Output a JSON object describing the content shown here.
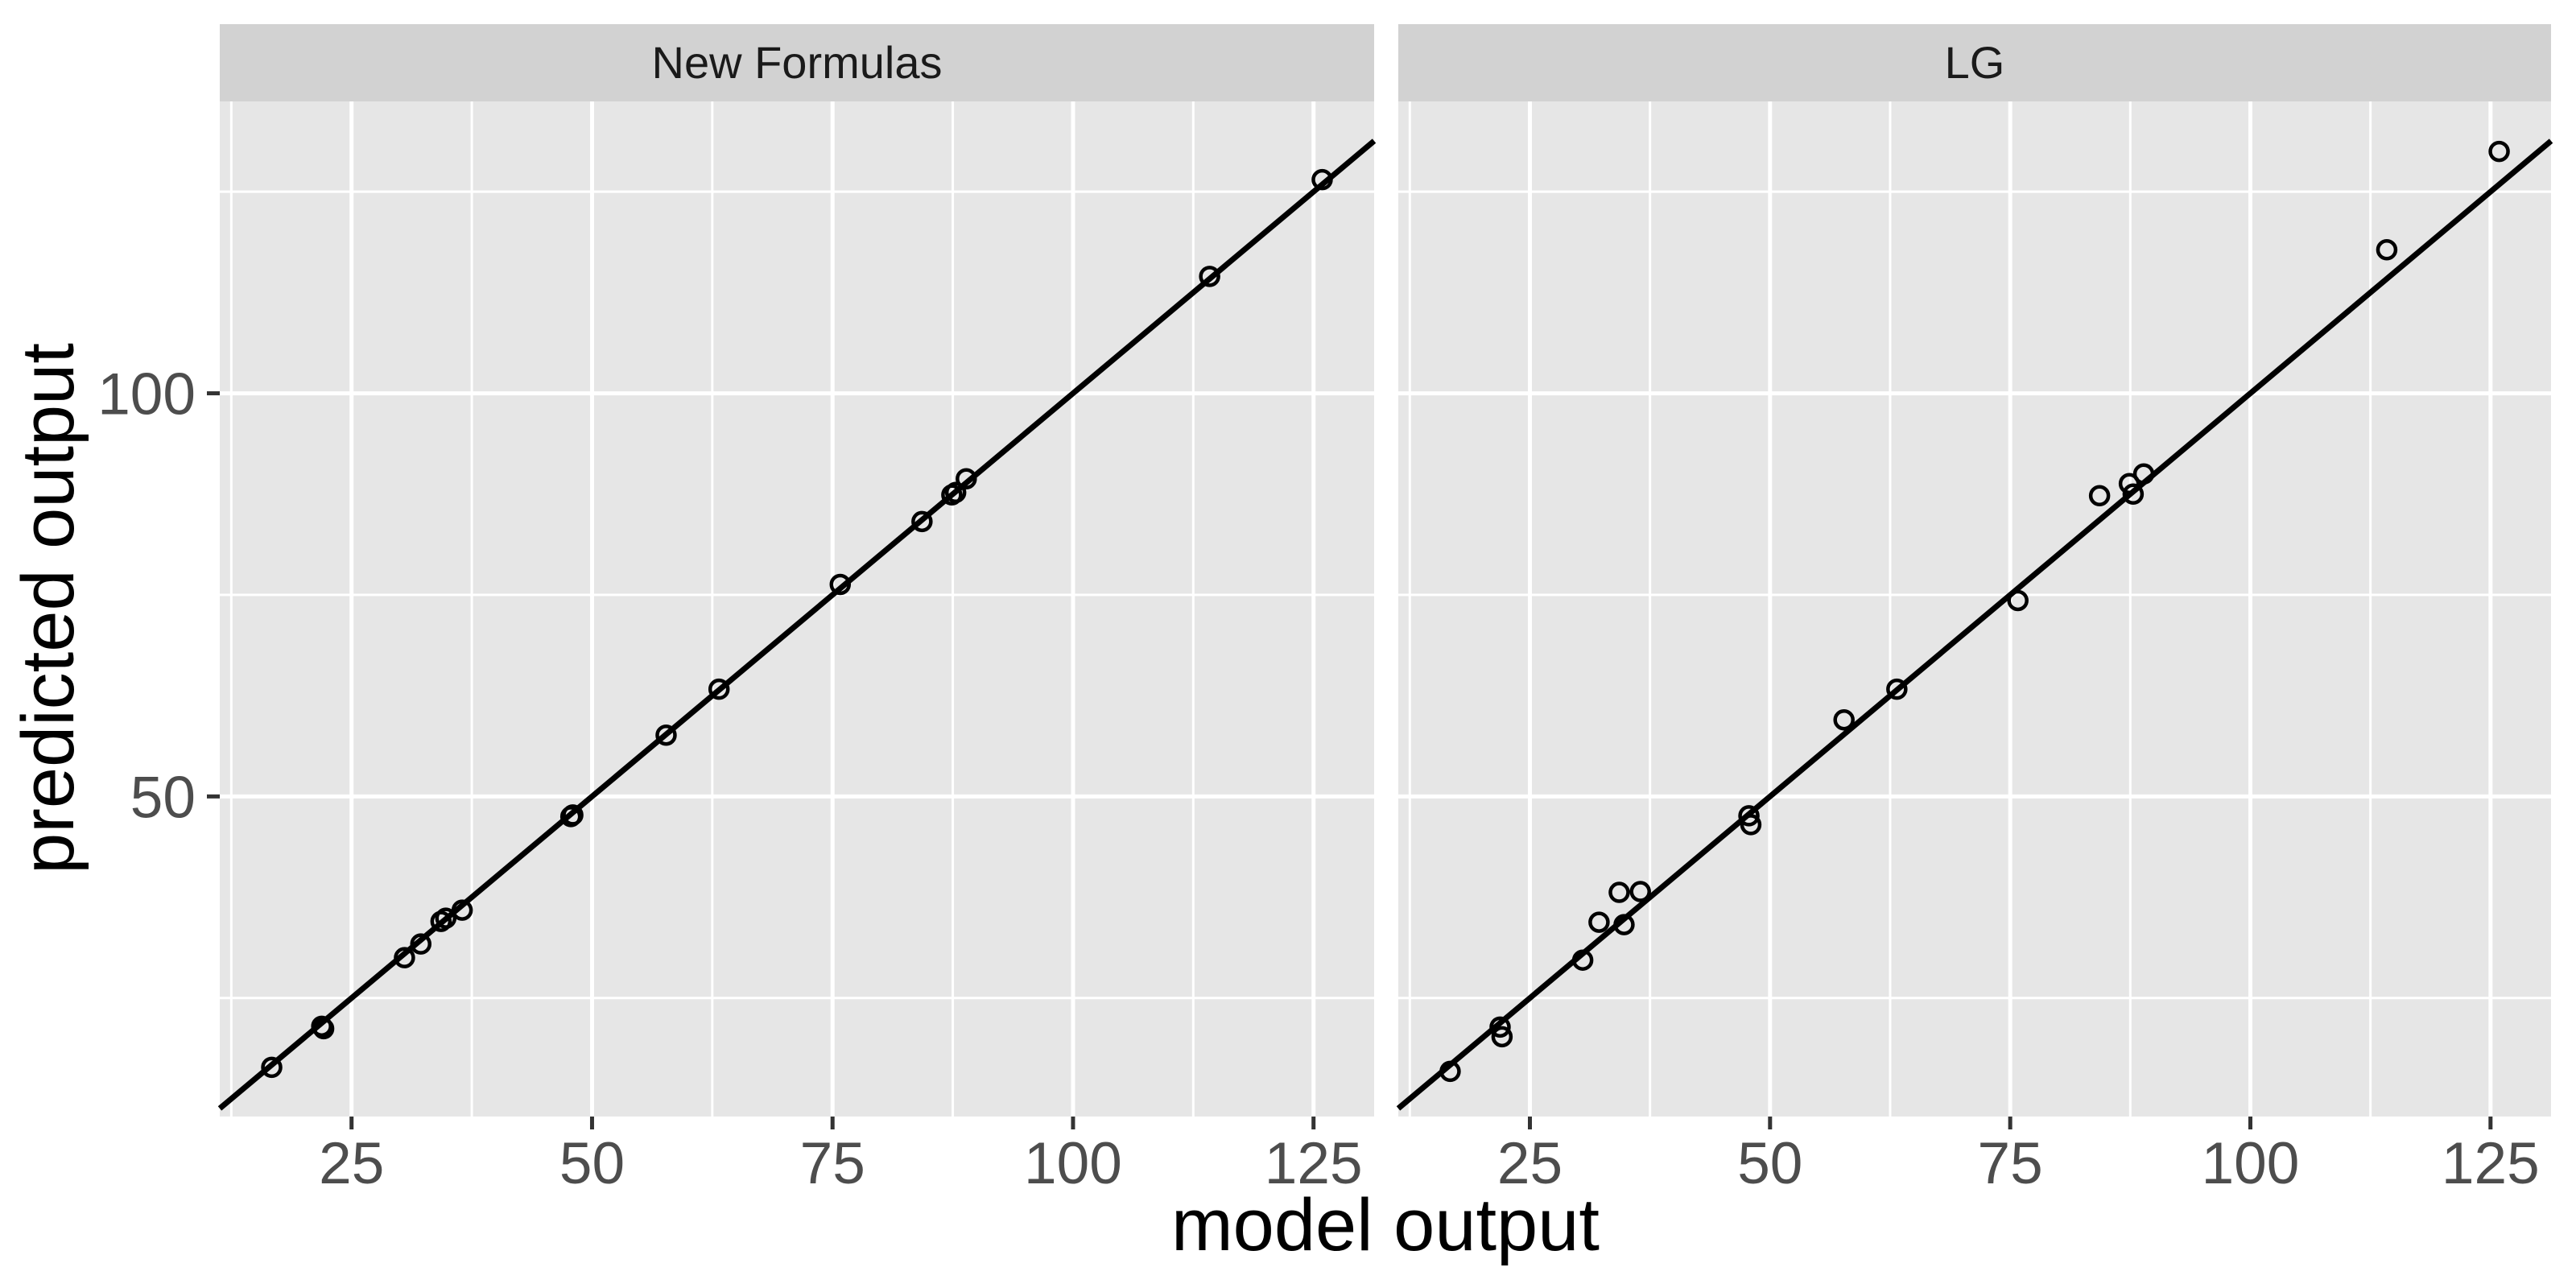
{
  "chart_data": {
    "type": "scatter",
    "title": "",
    "xlabel": "model output",
    "ylabel": "predicted output",
    "x_ticks": [
      25,
      50,
      75,
      100,
      125
    ],
    "y_ticks": [
      50,
      100
    ],
    "xlim": [
      11.3,
      131.3
    ],
    "ylim": [
      10.3,
      136.2
    ],
    "grid": "white major and minor gridlines on grey panel, minor at midpoints",
    "legend": "none",
    "annotations": "black y = x identity line drawn across each panel; open-circle points",
    "facets": [
      {
        "label": "New Formulas",
        "points": [
          [
            16.7,
            16.4
          ],
          [
            21.9,
            21.5
          ],
          [
            22.1,
            21.2
          ],
          [
            30.5,
            30.0
          ],
          [
            32.2,
            31.7
          ],
          [
            34.3,
            34.5
          ],
          [
            34.8,
            34.9
          ],
          [
            36.5,
            35.9
          ],
          [
            47.8,
            47.5
          ],
          [
            48.0,
            47.7
          ],
          [
            57.7,
            57.6
          ],
          [
            63.2,
            63.3
          ],
          [
            75.8,
            76.3
          ],
          [
            84.3,
            84.1
          ],
          [
            87.4,
            87.4
          ],
          [
            87.8,
            87.7
          ],
          [
            88.9,
            89.4
          ],
          [
            114.2,
            114.5
          ],
          [
            125.9,
            126.5
          ]
        ]
      },
      {
        "label": "LG",
        "points": [
          [
            16.7,
            15.9
          ],
          [
            21.9,
            21.4
          ],
          [
            22.1,
            20.2
          ],
          [
            30.5,
            29.7
          ],
          [
            32.2,
            34.4
          ],
          [
            34.3,
            38.1
          ],
          [
            34.8,
            34.1
          ],
          [
            36.5,
            38.2
          ],
          [
            47.8,
            47.6
          ],
          [
            48.0,
            46.5
          ],
          [
            57.7,
            59.5
          ],
          [
            63.2,
            63.3
          ],
          [
            75.8,
            74.3
          ],
          [
            84.3,
            87.3
          ],
          [
            87.4,
            88.8
          ],
          [
            87.8,
            87.5
          ],
          [
            88.9,
            90.0
          ],
          [
            114.2,
            117.8
          ],
          [
            125.9,
            130.0
          ]
        ]
      }
    ],
    "colors": {
      "panel_bg": "#e6e6e6",
      "strip_bg": "#d2d2d2",
      "gridline": "#ffffff",
      "point": "#000000",
      "line": "#000000",
      "tick_mark": "#333333",
      "tick_label": "#4d4d4d",
      "axis_title": "#000000"
    }
  }
}
